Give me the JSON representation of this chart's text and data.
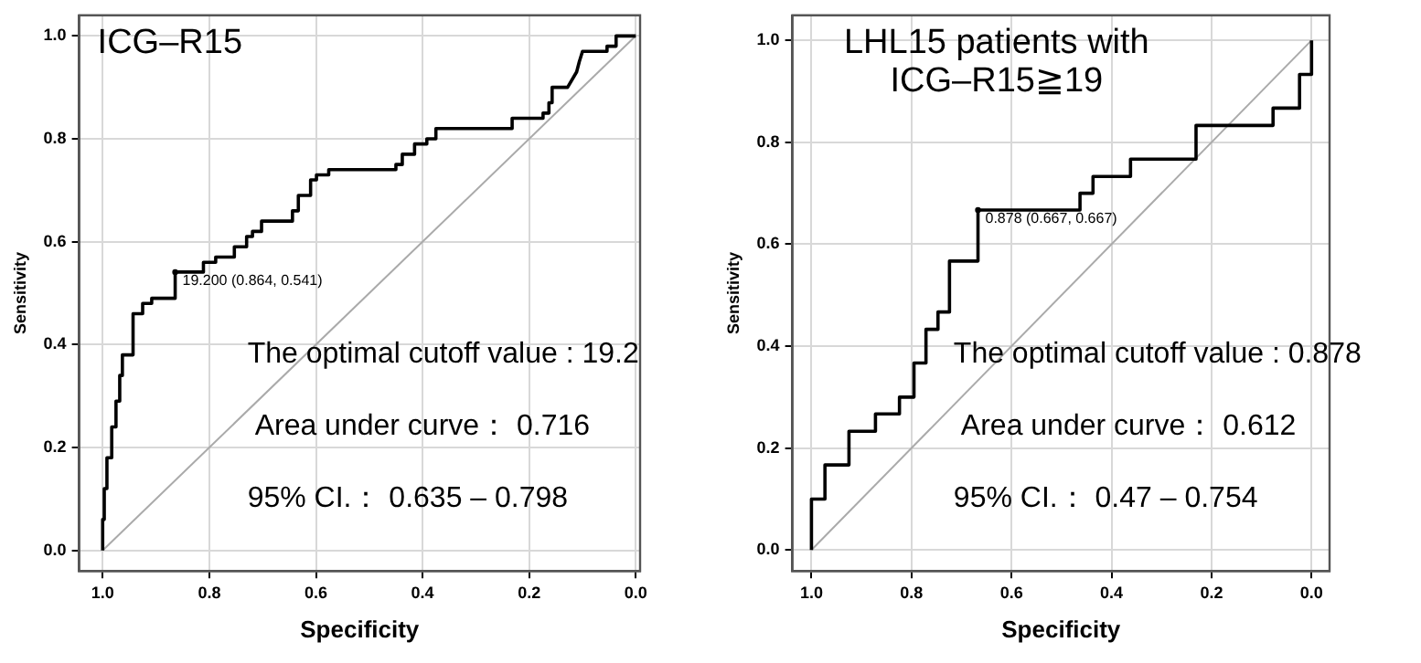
{
  "chart_data": [
    {
      "type": "line",
      "title": "ICG–R15",
      "xlabel": "Specificity",
      "ylabel": "Sensitivity",
      "xlim": [
        1.044,
        -0.008
      ],
      "ylim": [
        -0.04,
        1.04
      ],
      "xticks": [
        {
          "value": 1,
          "label": "1.0"
        },
        {
          "value": 0.8,
          "label": "0.8"
        },
        {
          "value": 0.6,
          "label": "0.6"
        },
        {
          "value": 0.4,
          "label": "0.4"
        },
        {
          "value": 0.2,
          "label": "0.2"
        },
        {
          "value": 0,
          "label": "0.0"
        }
      ],
      "yticks": [
        {
          "value": 0,
          "label": "0.0"
        },
        {
          "value": 0.2,
          "label": "0.2"
        },
        {
          "value": 0.4,
          "label": "0.4"
        },
        {
          "value": 0.6,
          "label": "0.6"
        },
        {
          "value": 0.8,
          "label": "0.8"
        },
        {
          "value": 1,
          "label": "1.0"
        }
      ],
      "grid": true,
      "marker": "none",
      "line_style": "solid",
      "series": [
        {
          "color": "#000000",
          "x": [
            1,
            1,
            0.997,
            0.997,
            0.992,
            0.992,
            0.983,
            0.983,
            0.975,
            0.975,
            0.968,
            0.968,
            0.963,
            0.963,
            0.943,
            0.943,
            0.925,
            0.925,
            0.908,
            0.908,
            0.864,
            0.864,
            0.811,
            0.811,
            0.788,
            0.788,
            0.753,
            0.753,
            0.73,
            0.73,
            0.719,
            0.719,
            0.702,
            0.702,
            0.644,
            0.644,
            0.633,
            0.633,
            0.61,
            0.61,
            0.599,
            0.599,
            0.576,
            0.576,
            0.45,
            0.45,
            0.438,
            0.438,
            0.415,
            0.415,
            0.392,
            0.392,
            0.375,
            0.375,
            0.232,
            0.232,
            0.174,
            0.174,
            0.163,
            0.163,
            0.157,
            0.157,
            0.128,
            0.111,
            0.106,
            0.1,
            0.054,
            0.054,
            0.037,
            0.037,
            0
          ],
          "values": [
            0,
            0.06,
            0.06,
            0.12,
            0.12,
            0.18,
            0.18,
            0.24,
            0.24,
            0.29,
            0.29,
            0.34,
            0.34,
            0.38,
            0.38,
            0.46,
            0.46,
            0.48,
            0.48,
            0.49,
            0.49,
            0.541,
            0.541,
            0.56,
            0.56,
            0.57,
            0.57,
            0.59,
            0.59,
            0.61,
            0.61,
            0.62,
            0.62,
            0.64,
            0.64,
            0.66,
            0.66,
            0.69,
            0.69,
            0.72,
            0.72,
            0.73,
            0.73,
            0.74,
            0.74,
            0.75,
            0.75,
            0.77,
            0.77,
            0.79,
            0.79,
            0.8,
            0.8,
            0.82,
            0.82,
            0.84,
            0.84,
            0.85,
            0.85,
            0.87,
            0.87,
            0.9,
            0.9,
            0.93,
            0.95,
            0.97,
            0.97,
            0.98,
            0.98,
            1,
            1
          ]
        },
        {
          "type": "line",
          "color": "#aaaaaa",
          "x": [
            1,
            0
          ],
          "values": [
            0,
            1
          ]
        }
      ],
      "annotations": [
        {
          "text": "19.200 (0.864, 0.541)",
          "x": 0.864,
          "y": 0.541
        },
        "The optimal cutoff value : 19.2",
        "Area under curve： 0.716",
        "95% CI.： 0.635 – 0.798"
      ]
    },
    {
      "type": "line",
      "title": "LHL15 patients with ICG–R15≧19",
      "xlabel": "Specificity",
      "ylabel": "Sensitivity",
      "xlim": [
        1.038,
        -0.036
      ],
      "ylim": [
        -0.041,
        1.049
      ],
      "xticks": [
        {
          "value": 1,
          "label": "1.0"
        },
        {
          "value": 0.8,
          "label": "0.8"
        },
        {
          "value": 0.6,
          "label": "0.6"
        },
        {
          "value": 0.4,
          "label": "0.4"
        },
        {
          "value": 0.2,
          "label": "0.2"
        },
        {
          "value": 0,
          "label": "0.0"
        }
      ],
      "yticks": [
        {
          "value": 0,
          "label": "0.0"
        },
        {
          "value": 0.2,
          "label": "0.2"
        },
        {
          "value": 0.4,
          "label": "0.4"
        },
        {
          "value": 0.6,
          "label": "0.6"
        },
        {
          "value": 0.8,
          "label": "0.8"
        },
        {
          "value": 1,
          "label": "1.0"
        }
      ],
      "grid": true,
      "marker": "none",
      "line_style": "solid",
      "series": [
        {
          "color": "#000000",
          "x": [
            1,
            1,
            0.973,
            0.973,
            0.925,
            0.925,
            0.872,
            0.872,
            0.824,
            0.824,
            0.795,
            0.795,
            0.771,
            0.771,
            0.747,
            0.747,
            0.724,
            0.724,
            0.667,
            0.667,
            0.463,
            0.463,
            0.437,
            0.437,
            0.362,
            0.362,
            0.231,
            0.231,
            0.077,
            0.077,
            0.024,
            0.024,
            0,
            0
          ],
          "values": [
            0,
            0.1,
            0.1,
            0.167,
            0.167,
            0.233,
            0.233,
            0.267,
            0.267,
            0.3,
            0.3,
            0.367,
            0.367,
            0.433,
            0.433,
            0.467,
            0.467,
            0.567,
            0.567,
            0.667,
            0.667,
            0.7,
            0.7,
            0.733,
            0.733,
            0.767,
            0.767,
            0.833,
            0.833,
            0.867,
            0.867,
            0.933,
            0.933,
            1
          ]
        },
        {
          "type": "line",
          "color": "#aaaaaa",
          "x": [
            1,
            0
          ],
          "values": [
            0,
            1
          ]
        }
      ],
      "annotations": [
        {
          "text": "0.878 (0.667, 0.667)",
          "x": 0.667,
          "y": 0.667
        },
        "The optimal cutoff value : 0.878",
        "Area under curve： 0.612",
        "95% CI.： 0.47 – 0.754"
      ]
    }
  ]
}
